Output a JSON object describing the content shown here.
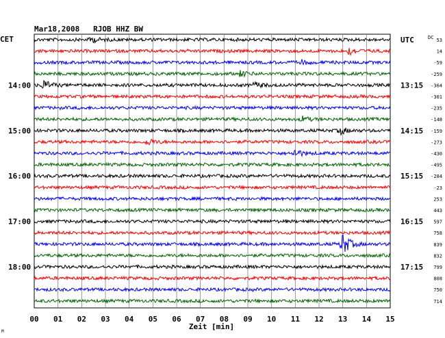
{
  "header": {
    "title": "Mar18,2008   RJOB HHZ BW"
  },
  "left_axis": {
    "label": "CET"
  },
  "right_axis": {
    "label": "UTC"
  },
  "dc_axis": {
    "label": "DC"
  },
  "x_axis": {
    "label": "Zeit [min]"
  },
  "footnote": "M",
  "colors": {
    "trace_cycle": [
      "#000000",
      "#ff0000",
      "#0000ff",
      "#006400"
    ],
    "grid": "#808080"
  },
  "chart_data": {
    "type": "line",
    "title": "Mar18,2008   RJOB HHZ BW",
    "xlabel": "Zeit [min]",
    "xlim": [
      0,
      15
    ],
    "x_ticks": [
      "00",
      "01",
      "02",
      "03",
      "04",
      "05",
      "06",
      "07",
      "08",
      "09",
      "10",
      "11",
      "12",
      "13",
      "14",
      "15"
    ],
    "trace_interval_min": 15,
    "trace_count": 24,
    "left_time_labels": [
      {
        "trace": 4,
        "label": "14:00"
      },
      {
        "trace": 8,
        "label": "15:00"
      },
      {
        "trace": 12,
        "label": "16:00"
      },
      {
        "trace": 16,
        "label": "17:00"
      },
      {
        "trace": 20,
        "label": "18:00"
      }
    ],
    "right_time_labels": [
      {
        "trace": 0,
        "label": "UTC"
      },
      {
        "trace": 4,
        "label": "13:15"
      },
      {
        "trace": 8,
        "label": "14:15"
      },
      {
        "trace": 12,
        "label": "15:15"
      },
      {
        "trace": 16,
        "label": "16:15"
      },
      {
        "trace": 20,
        "label": "17:15"
      }
    ],
    "dc_offsets": [
      53,
      14,
      -59,
      -259,
      -364,
      -301,
      -235,
      -148,
      -159,
      -273,
      -430,
      -495,
      -284,
      -23,
      253,
      443,
      597,
      758,
      839,
      832,
      799,
      808,
      750,
      714
    ],
    "events": [
      {
        "trace": 0,
        "minute": 2.4,
        "amplitude": 0.35
      },
      {
        "trace": 1,
        "minute": 13.3,
        "amplitude": 0.5
      },
      {
        "trace": 2,
        "minute": 11.2,
        "amplitude": 0.3
      },
      {
        "trace": 3,
        "minute": 8.7,
        "amplitude": 0.35
      },
      {
        "trace": 4,
        "minute": 0.4,
        "amplitude": 0.6
      },
      {
        "trace": 4,
        "minute": 9.3,
        "amplitude": 0.35
      },
      {
        "trace": 7,
        "minute": 11.3,
        "amplitude": 0.3
      },
      {
        "trace": 8,
        "minute": 12.9,
        "amplitude": 0.45
      },
      {
        "trace": 9,
        "minute": 4.8,
        "amplitude": 0.4
      },
      {
        "trace": 10,
        "minute": 11.0,
        "amplitude": 0.5
      },
      {
        "trace": 18,
        "minute": 13.0,
        "amplitude": 1.5
      }
    ]
  }
}
